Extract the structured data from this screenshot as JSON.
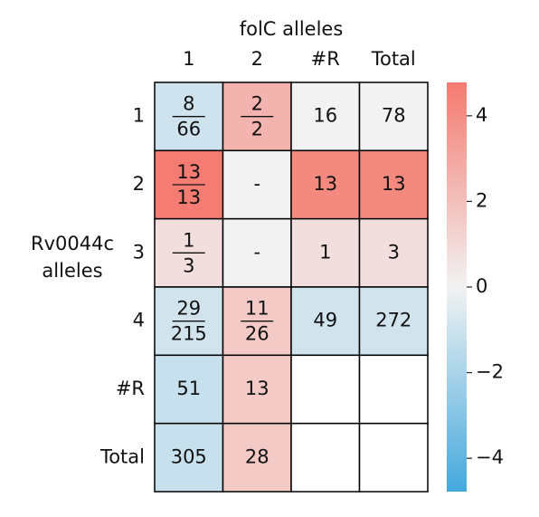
{
  "chart_data": {
    "type": "heatmap",
    "title": "folC alleles",
    "ylabel": [
      "Rv0044c",
      "alleles"
    ],
    "x_categories": [
      "1",
      "2",
      "#R",
      "Total"
    ],
    "y_categories": [
      "1",
      "2",
      "3",
      "4",
      "#R",
      "Total"
    ],
    "values": [
      [
        -1.0,
        2.5,
        0,
        0
      ],
      [
        4.7,
        0,
        4.2,
        4.2
      ],
      [
        0.8,
        0,
        0.8,
        0.8
      ],
      [
        -0.9,
        1.6,
        -0.9,
        -0.9
      ],
      [
        -1.2,
        1.6,
        null,
        null
      ],
      [
        -1.2,
        1.6,
        null,
        null
      ]
    ],
    "cell_labels": [
      [
        [
          "8",
          "66"
        ],
        [
          "2",
          "2"
        ],
        "16",
        "78"
      ],
      [
        [
          "13",
          "13"
        ],
        "-",
        "13",
        "13"
      ],
      [
        [
          "1",
          "3"
        ],
        "-",
        "1",
        "3"
      ],
      [
        [
          "29",
          "215"
        ],
        [
          "11",
          "26"
        ],
        "49",
        "272"
      ],
      [
        "51",
        "13",
        null,
        null
      ],
      [
        "305",
        "28",
        null,
        null
      ]
    ],
    "clim": [
      -4.78,
      4.78
    ],
    "cticks": [
      {
        "value": -4,
        "label": "−4"
      },
      {
        "value": -2,
        "label": "−2"
      },
      0,
      2,
      4
    ],
    "cmap": [
      "#44a9dd",
      "#f2f2f2",
      "#f47a70"
    ]
  }
}
